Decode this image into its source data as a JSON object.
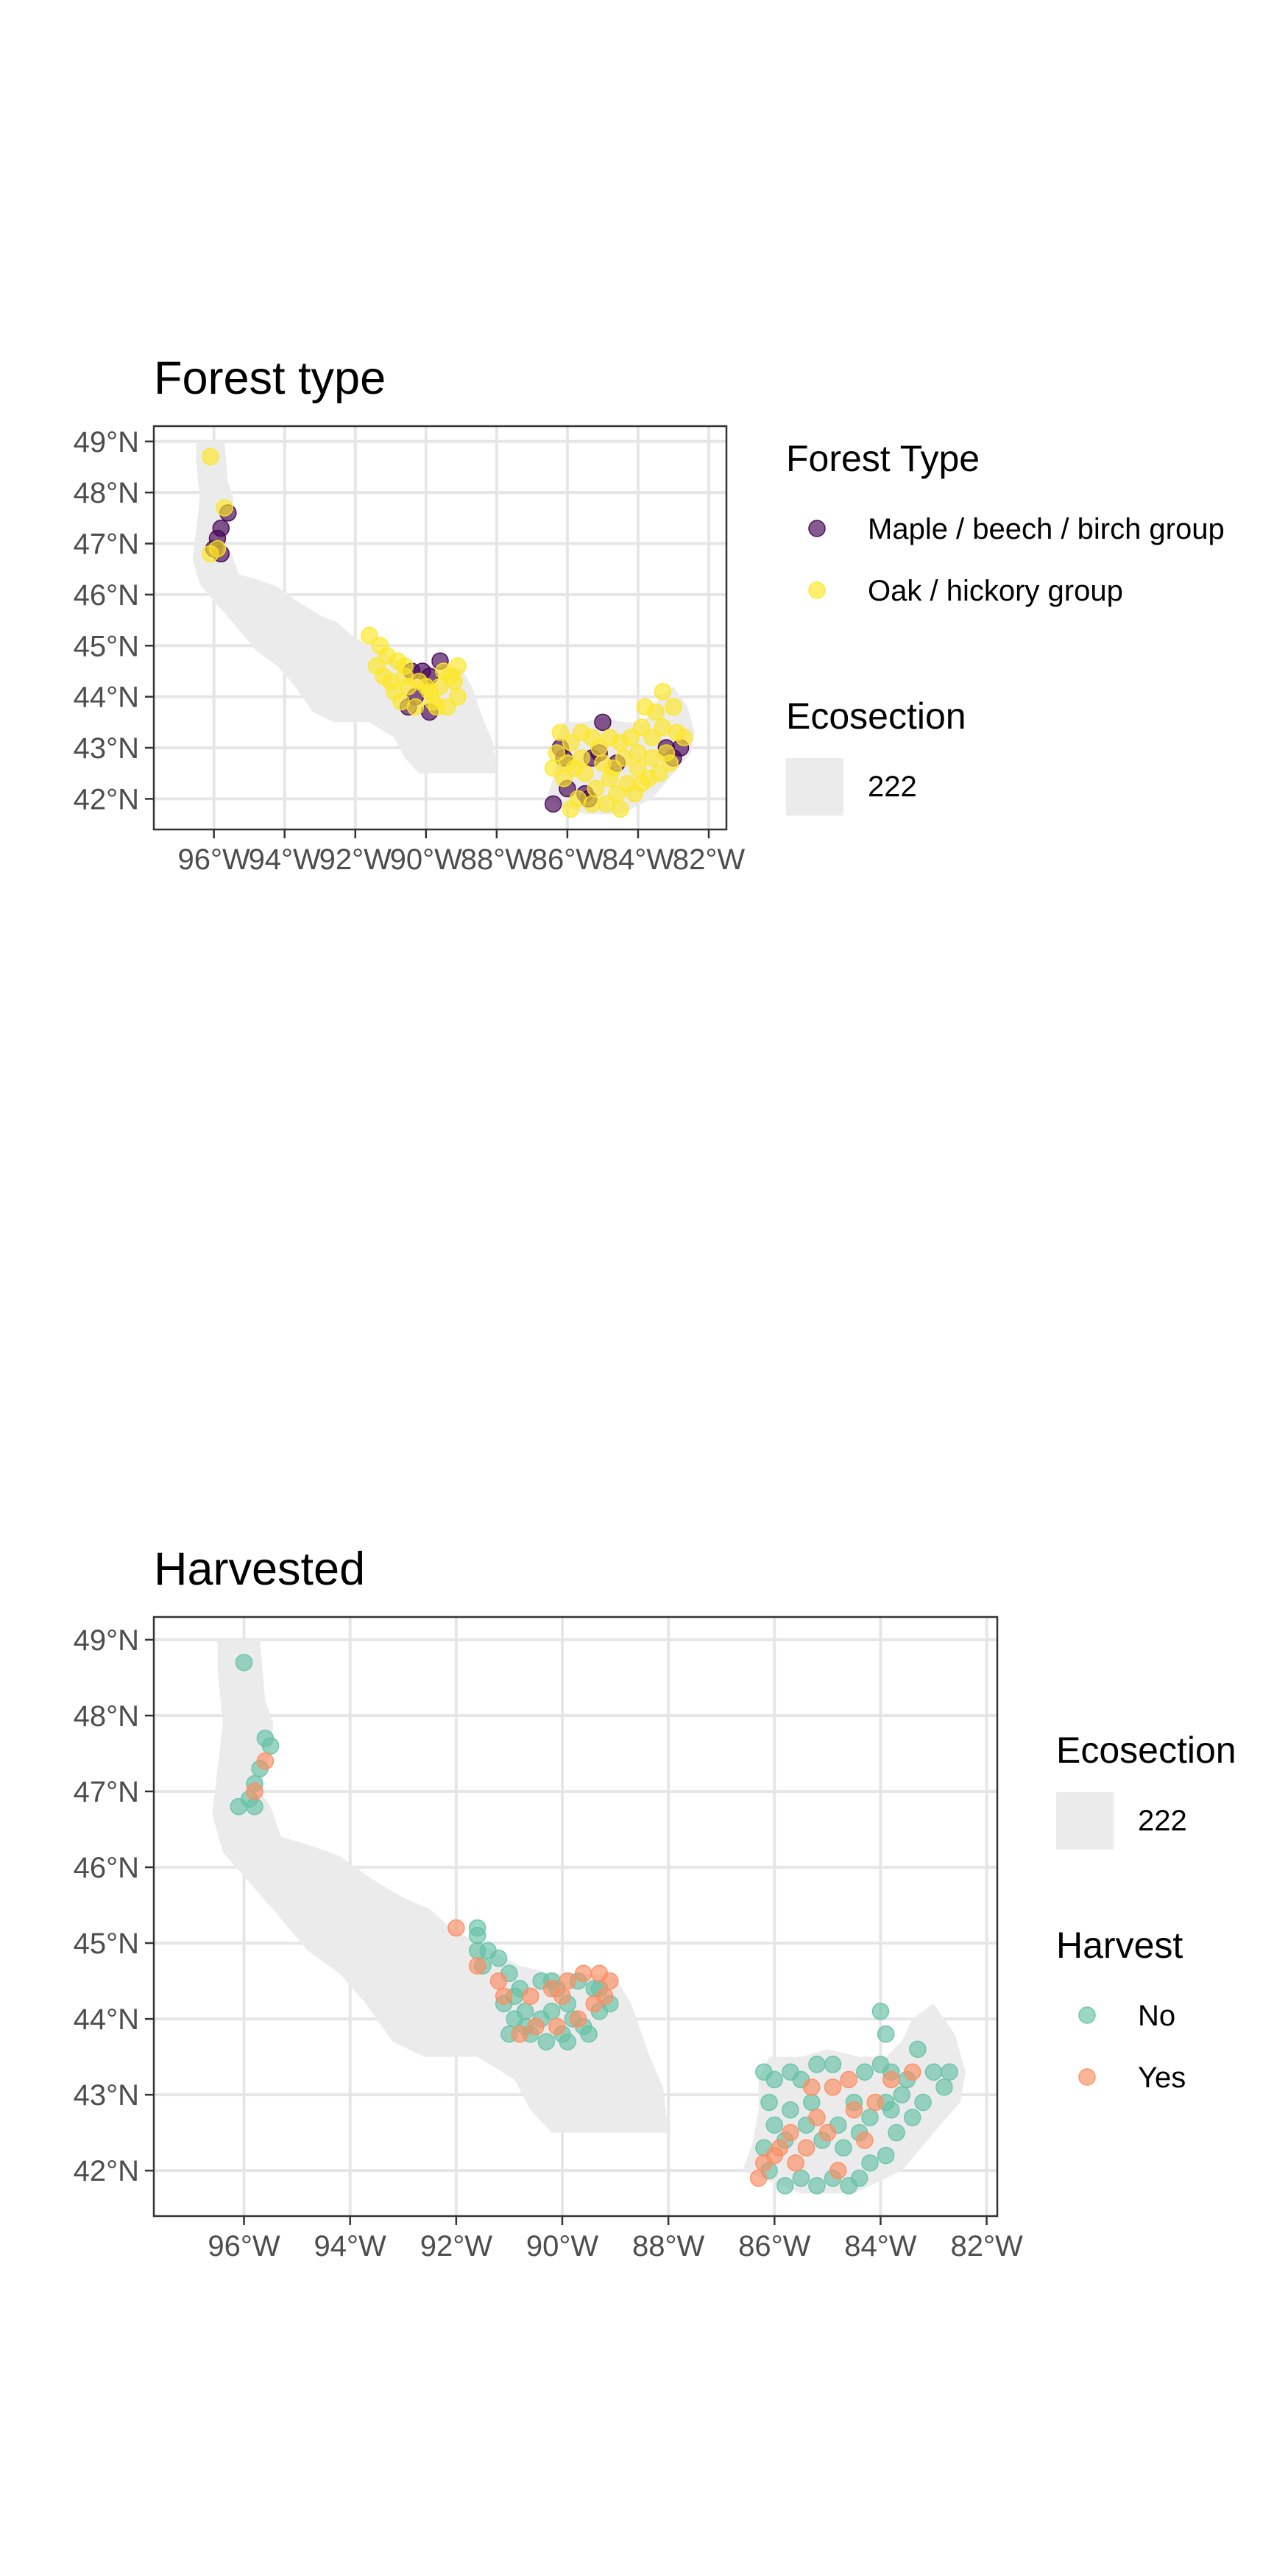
{
  "colors": {
    "land": "#ebebeb",
    "grid": "#e6e6e6",
    "maple": "#440154",
    "oak": "#fde725",
    "harvest_no": "#66c2a5",
    "harvest_yes": "#fc8d62"
  },
  "panels": [
    {
      "title": "Forest type",
      "lon_ticks": [
        "96°W",
        "94°W",
        "92°W",
        "90°W",
        "88°W",
        "86°W",
        "84°W",
        "82°W"
      ],
      "lat_ticks": [
        "49°N",
        "48°N",
        "47°N",
        "46°N",
        "45°N",
        "44°N",
        "43°N",
        "42°N"
      ],
      "legend_groups": [
        {
          "title": "Forest Type",
          "items": [
            {
              "label": "Maple / beech / birch group",
              "symbol": "point",
              "color": "#440154"
            },
            {
              "label": "Oak / hickory group",
              "symbol": "point",
              "color": "#fde725"
            }
          ]
        },
        {
          "title": "Ecosection",
          "items": [
            {
              "label": "222",
              "symbol": "patch",
              "color": "#ebebeb"
            }
          ]
        }
      ]
    },
    {
      "title": "Harvested",
      "lon_ticks": [
        "96°W",
        "94°W",
        "92°W",
        "90°W",
        "88°W",
        "86°W",
        "84°W",
        "82°W"
      ],
      "lat_ticks": [
        "49°N",
        "48°N",
        "47°N",
        "46°N",
        "45°N",
        "44°N",
        "43°N",
        "42°N"
      ],
      "legend_groups": [
        {
          "title": "Ecosection",
          "items": [
            {
              "label": "222",
              "symbol": "patch",
              "color": "#ebebeb"
            }
          ]
        },
        {
          "title": "Harvest",
          "items": [
            {
              "label": "No",
              "symbol": "point",
              "color": "#66c2a5"
            },
            {
              "label": "Yes",
              "symbol": "point",
              "color": "#fc8d62"
            }
          ]
        }
      ]
    }
  ],
  "chart_data": [
    {
      "type": "scatter",
      "title": "Forest type",
      "x_unit": "longitude (deg E)",
      "y_unit": "latitude (deg N)",
      "xlim": [
        -97.7,
        -81.5
      ],
      "ylim": [
        41.4,
        49.3
      ],
      "region_label": "222",
      "series": [
        {
          "name": "Maple / beech / birch group",
          "points": [
            [
              -95.6,
              47.6
            ],
            [
              -95.8,
              47.3
            ],
            [
              -95.9,
              47.1
            ],
            [
              -96.0,
              46.9
            ],
            [
              -95.8,
              46.8
            ],
            [
              -90.4,
              44.5
            ],
            [
              -90.1,
              44.5
            ],
            [
              -89.9,
              44.4
            ],
            [
              -89.6,
              44.7
            ],
            [
              -90.3,
              44.0
            ],
            [
              -90.5,
              43.8
            ],
            [
              -89.9,
              43.7
            ],
            [
              -86.2,
              43.0
            ],
            [
              -86.1,
              42.8
            ],
            [
              -85.3,
              42.8
            ],
            [
              -85.1,
              42.9
            ],
            [
              -85.0,
              43.5
            ],
            [
              -84.6,
              42.7
            ],
            [
              -86.4,
              41.9
            ],
            [
              -86.0,
              42.2
            ],
            [
              -85.5,
              42.1
            ],
            [
              -85.4,
              42.0
            ],
            [
              -83.2,
              43.0
            ],
            [
              -83.0,
              42.8
            ],
            [
              -82.8,
              43.0
            ]
          ]
        },
        {
          "name": "Oak / hickory group",
          "points": [
            [
              -96.1,
              48.7
            ],
            [
              -96.1,
              46.8
            ],
            [
              -95.7,
              47.7
            ],
            [
              -95.9,
              46.9
            ],
            [
              -91.6,
              45.2
            ],
            [
              -91.3,
              45.0
            ],
            [
              -91.1,
              44.8
            ],
            [
              -90.8,
              44.7
            ],
            [
              -90.6,
              44.4
            ],
            [
              -90.2,
              44.3
            ],
            [
              -89.9,
              44.1
            ],
            [
              -89.6,
              44.2
            ],
            [
              -89.3,
              44.4
            ],
            [
              -89.1,
              44.0
            ],
            [
              -90.9,
              44.1
            ],
            [
              -91.0,
              44.3
            ],
            [
              -90.7,
              43.9
            ],
            [
              -90.3,
              43.8
            ],
            [
              -89.8,
              43.9
            ],
            [
              -89.4,
              43.8
            ],
            [
              -89.2,
              44.3
            ],
            [
              -89.1,
              44.6
            ],
            [
              -90.6,
              44.6
            ],
            [
              -91.4,
              44.6
            ],
            [
              -91.2,
              44.4
            ],
            [
              -90.0,
              44.2
            ],
            [
              -89.5,
              44.5
            ],
            [
              -90.5,
              44.2
            ],
            [
              -89.7,
              43.8
            ],
            [
              -86.2,
              43.3
            ],
            [
              -85.9,
              43.1
            ],
            [
              -85.6,
              43.3
            ],
            [
              -85.3,
              43.2
            ],
            [
              -85.1,
              43.0
            ],
            [
              -84.8,
              43.2
            ],
            [
              -84.5,
              43.1
            ],
            [
              -84.2,
              43.2
            ],
            [
              -83.9,
              43.4
            ],
            [
              -83.6,
              43.2
            ],
            [
              -83.3,
              43.4
            ],
            [
              -82.9,
              43.3
            ],
            [
              -82.7,
              43.2
            ],
            [
              -83.1,
              42.7
            ],
            [
              -83.4,
              42.5
            ],
            [
              -83.7,
              42.4
            ],
            [
              -84.0,
              42.6
            ],
            [
              -84.3,
              42.3
            ],
            [
              -84.6,
              42.1
            ],
            [
              -84.9,
              41.9
            ],
            [
              -85.2,
              42.2
            ],
            [
              -85.5,
              42.5
            ],
            [
              -85.8,
              42.6
            ],
            [
              -86.1,
              42.4
            ],
            [
              -85.7,
              42.0
            ],
            [
              -85.3,
              41.9
            ],
            [
              -84.8,
              42.4
            ],
            [
              -84.4,
              42.8
            ],
            [
              -84.0,
              42.9
            ],
            [
              -83.6,
              42.8
            ],
            [
              -83.2,
              42.9
            ],
            [
              -83.5,
              43.7
            ],
            [
              -83.8,
              43.8
            ],
            [
              -83.3,
              44.1
            ],
            [
              -83.0,
              43.8
            ],
            [
              -86.3,
              42.9
            ],
            [
              -86.0,
              42.7
            ],
            [
              -85.0,
              42.7
            ],
            [
              -84.7,
              42.6
            ],
            [
              -84.1,
              42.1
            ],
            [
              -83.9,
              42.3
            ],
            [
              -85.9,
              41.8
            ],
            [
              -84.5,
              41.8
            ],
            [
              -85.6,
              42.8
            ],
            [
              -86.4,
              42.6
            ]
          ]
        }
      ]
    },
    {
      "type": "scatter",
      "title": "Harvested",
      "x_unit": "longitude (deg E)",
      "y_unit": "latitude (deg N)",
      "xlim": [
        -97.7,
        -81.8
      ],
      "ylim": [
        41.4,
        49.3
      ],
      "region_label": "222",
      "series": [
        {
          "name": "No",
          "points": [
            [
              -96.0,
              48.7
            ],
            [
              -95.6,
              47.7
            ],
            [
              -95.5,
              47.6
            ],
            [
              -95.7,
              47.3
            ],
            [
              -95.8,
              47.1
            ],
            [
              -95.9,
              46.9
            ],
            [
              -95.8,
              46.8
            ],
            [
              -96.1,
              46.8
            ],
            [
              -91.6,
              45.2
            ],
            [
              -91.6,
              45.1
            ],
            [
              -91.6,
              44.9
            ],
            [
              -91.4,
              44.9
            ],
            [
              -91.5,
              44.7
            ],
            [
              -91.2,
              44.8
            ],
            [
              -91.0,
              44.6
            ],
            [
              -90.8,
              44.4
            ],
            [
              -91.1,
              44.2
            ],
            [
              -90.9,
              44.0
            ],
            [
              -91.0,
              43.8
            ],
            [
              -90.7,
              43.9
            ],
            [
              -90.4,
              44.0
            ],
            [
              -90.2,
              44.1
            ],
            [
              -90.0,
              43.8
            ],
            [
              -89.8,
              44.0
            ],
            [
              -89.6,
              43.9
            ],
            [
              -89.3,
              44.1
            ],
            [
              -89.1,
              44.2
            ],
            [
              -89.4,
              44.4
            ],
            [
              -89.7,
              44.5
            ],
            [
              -90.1,
              44.4
            ],
            [
              -90.4,
              44.5
            ],
            [
              -90.7,
              44.1
            ],
            [
              -90.3,
              43.7
            ],
            [
              -89.9,
              43.7
            ],
            [
              -89.5,
              43.8
            ],
            [
              -89.3,
              44.4
            ],
            [
              -90.6,
              43.8
            ],
            [
              -90.9,
              44.3
            ],
            [
              -89.9,
              44.2
            ],
            [
              -90.2,
              44.5
            ],
            [
              -86.2,
              43.3
            ],
            [
              -86.0,
              43.2
            ],
            [
              -85.7,
              43.3
            ],
            [
              -85.5,
              43.2
            ],
            [
              -85.2,
              43.4
            ],
            [
              -84.9,
              43.4
            ],
            [
              -84.3,
              43.3
            ],
            [
              -84.0,
              43.4
            ],
            [
              -83.8,
              43.3
            ],
            [
              -83.5,
              43.2
            ],
            [
              -83.0,
              43.3
            ],
            [
              -82.7,
              43.3
            ],
            [
              -82.8,
              43.1
            ],
            [
              -83.2,
              42.9
            ],
            [
              -83.4,
              42.7
            ],
            [
              -83.7,
              42.5
            ],
            [
              -83.9,
              42.2
            ],
            [
              -84.2,
              42.1
            ],
            [
              -84.4,
              41.9
            ],
            [
              -84.6,
              41.8
            ],
            [
              -84.9,
              41.9
            ],
            [
              -85.2,
              41.8
            ],
            [
              -85.5,
              41.9
            ],
            [
              -85.8,
              41.8
            ],
            [
              -86.1,
              42.0
            ],
            [
              -86.2,
              42.3
            ],
            [
              -86.0,
              42.6
            ],
            [
              -85.7,
              42.8
            ],
            [
              -85.4,
              42.6
            ],
            [
              -85.1,
              42.4
            ],
            [
              -84.8,
              42.6
            ],
            [
              -84.5,
              42.9
            ],
            [
              -84.2,
              42.7
            ],
            [
              -83.9,
              42.9
            ],
            [
              -83.6,
              43.0
            ],
            [
              -83.3,
              43.6
            ],
            [
              -83.9,
              43.8
            ],
            [
              -84.0,
              44.1
            ],
            [
              -86.1,
              42.9
            ],
            [
              -85.8,
              42.4
            ],
            [
              -84.7,
              42.3
            ],
            [
              -84.4,
              42.5
            ],
            [
              -83.8,
              42.8
            ],
            [
              -85.3,
              42.9
            ]
          ]
        },
        {
          "name": "Yes",
          "points": [
            [
              -95.6,
              47.4
            ],
            [
              -95.8,
              47.0
            ],
            [
              -92.0,
              45.2
            ],
            [
              -91.6,
              44.7
            ],
            [
              -91.2,
              44.5
            ],
            [
              -91.1,
              44.3
            ],
            [
              -90.6,
              44.3
            ],
            [
              -90.2,
              44.4
            ],
            [
              -89.9,
              44.5
            ],
            [
              -89.6,
              44.6
            ],
            [
              -89.3,
              44.6
            ],
            [
              -89.1,
              44.5
            ],
            [
              -89.4,
              44.2
            ],
            [
              -89.7,
              44.0
            ],
            [
              -90.1,
              43.9
            ],
            [
              -90.5,
              43.9
            ],
            [
              -90.8,
              43.8
            ],
            [
              -89.2,
              44.3
            ],
            [
              -90.0,
              44.3
            ],
            [
              -86.3,
              41.9
            ],
            [
              -86.0,
              42.2
            ],
            [
              -85.7,
              42.5
            ],
            [
              -85.4,
              42.3
            ],
            [
              -85.2,
              42.7
            ],
            [
              -84.9,
              43.1
            ],
            [
              -84.6,
              43.2
            ],
            [
              -84.1,
              42.9
            ],
            [
              -83.8,
              43.2
            ],
            [
              -83.4,
              43.3
            ],
            [
              -84.3,
              42.4
            ],
            [
              -84.8,
              42.0
            ],
            [
              -85.3,
              43.1
            ],
            [
              -85.6,
              42.1
            ],
            [
              -85.0,
              42.5
            ],
            [
              -84.5,
              42.8
            ],
            [
              -85.9,
              42.3
            ],
            [
              -86.2,
              42.1
            ]
          ]
        }
      ]
    }
  ]
}
